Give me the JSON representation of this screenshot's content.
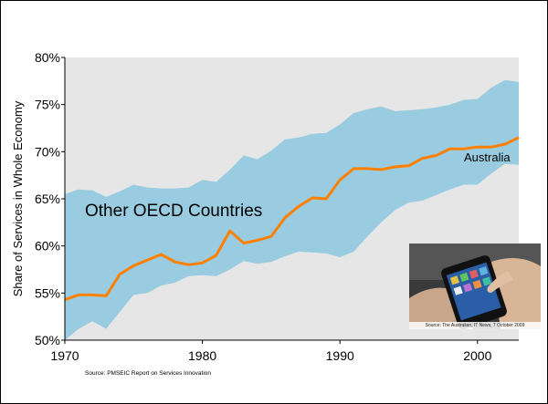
{
  "chart_data": {
    "type": "area",
    "ylabel": "Share of Services in Whole Economy",
    "xlim": [
      1970,
      2003
    ],
    "ylim": [
      50,
      80
    ],
    "xticks": [
      "1970",
      "1980",
      "1990",
      "2000"
    ],
    "yticks": [
      "50%",
      "55%",
      "60%",
      "65%",
      "70%",
      "75%",
      "80%"
    ],
    "band_label": "Other OECD Countries",
    "series_label": "Australia",
    "x": [
      1970,
      1971,
      1972,
      1973,
      1974,
      1975,
      1976,
      1977,
      1978,
      1979,
      1980,
      1981,
      1982,
      1983,
      1984,
      1985,
      1986,
      1987,
      1988,
      1989,
      1990,
      1991,
      1992,
      1993,
      1994,
      1995,
      1996,
      1997,
      1998,
      1999,
      2000,
      2001,
      2002,
      2003
    ],
    "band_upper": [
      65.5,
      66.0,
      65.9,
      65.2,
      65.8,
      66.5,
      66.2,
      66.1,
      66.1,
      66.2,
      67.0,
      66.8,
      68.1,
      69.6,
      69.2,
      70.1,
      71.3,
      71.5,
      71.9,
      72.0,
      72.9,
      74.1,
      74.5,
      74.8,
      74.3,
      74.4,
      74.5,
      74.7,
      75.0,
      75.5,
      75.6,
      76.8,
      77.6,
      77.4
    ],
    "band_lower": [
      50.0,
      51.2,
      52.0,
      51.2,
      53.0,
      54.8,
      55.0,
      55.8,
      56.1,
      56.8,
      56.9,
      56.8,
      57.5,
      58.4,
      58.1,
      58.3,
      58.9,
      59.4,
      59.3,
      59.2,
      58.8,
      59.4,
      61.0,
      62.5,
      63.8,
      64.6,
      64.8,
      65.4,
      66.0,
      66.5,
      66.5,
      67.7,
      68.7,
      68.6
    ],
    "australia": [
      54.3,
      54.8,
      54.8,
      54.7,
      57.0,
      57.9,
      58.5,
      59.1,
      58.3,
      58.0,
      58.2,
      59.0,
      61.6,
      60.3,
      60.6,
      61.0,
      63.0,
      64.2,
      65.1,
      65.0,
      67.0,
      68.2,
      68.2,
      68.1,
      68.4,
      68.5,
      69.3,
      69.6,
      70.3,
      70.3,
      70.5,
      70.5,
      70.8,
      71.5
    ],
    "colors": {
      "plot_bg": "#e6e6e6",
      "band": "#99cce0",
      "line": "#ff8000"
    }
  },
  "source_main": "Source: PMSEIC Report on Services Innovation",
  "photo_source": "Source: The Australian, IT News, 7 October 2009"
}
